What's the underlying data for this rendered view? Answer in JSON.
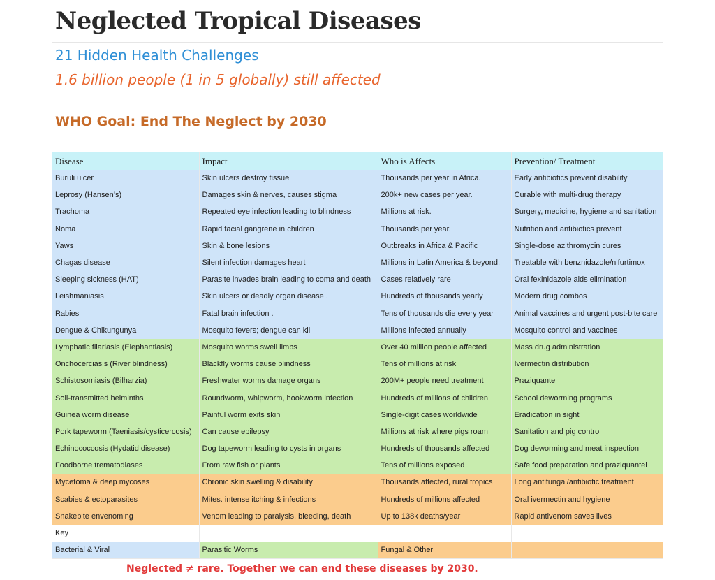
{
  "header": {
    "title": "Neglected Tropical Diseases",
    "subtitle": "21 Hidden Health Challenges",
    "stat": "1.6 billion people (1 in 5 globally) still affected",
    "goal": "WHO Goal: End The Neglect by 2030"
  },
  "table": {
    "columns": [
      "Disease",
      "Impact",
      "Who is Affects",
      "Prevention/ Treatment"
    ],
    "rows": [
      {
        "group": "blue",
        "cells": [
          "Buruli ulcer",
          "Skin ulcers destroy tissue",
          "Thousands per year in Africa.",
          "Early antibiotics prevent disability"
        ]
      },
      {
        "group": "blue",
        "cells": [
          "Leprosy (Hansen’s)",
          "Damages skin & nerves, causes stigma",
          "200k+ new cases per year.",
          "Curable with multi-drug therapy"
        ]
      },
      {
        "group": "blue",
        "cells": [
          "Trachoma",
          "Repeated eye infection leading to blindness",
          "Millions at risk.",
          "Surgery, medicine, hygiene and sanitation"
        ]
      },
      {
        "group": "blue",
        "cells": [
          "Noma",
          "Rapid facial gangrene in children",
          "Thousands per year.",
          "Nutrition and antibiotics prevent"
        ]
      },
      {
        "group": "blue",
        "cells": [
          "Yaws",
          "Skin & bone lesions",
          "Outbreaks in Africa & Pacific",
          "Single-dose azithromycin cures"
        ]
      },
      {
        "group": "blue",
        "cells": [
          "Chagas disease",
          "Silent infection damages heart",
          "Millions in Latin America & beyond.",
          "Treatable with benznidazole/nifurtimox"
        ]
      },
      {
        "group": "blue",
        "cells": [
          "Sleeping sickness (HAT)",
          "Parasite invades brain leading to  coma and death",
          "Cases relatively rare",
          "Oral fexinidazole aids elimination"
        ]
      },
      {
        "group": "blue",
        "cells": [
          "Leishmaniasis",
          "Skin ulcers or deadly organ disease .",
          "Hundreds of thousands yearly",
          "Modern drug combos"
        ]
      },
      {
        "group": "blue",
        "cells": [
          "Rabies",
          "Fatal brain infection .",
          "Tens of thousands die every year",
          "Animal vaccines and urgent post-bite care"
        ]
      },
      {
        "group": "blue",
        "cells": [
          "Dengue & Chikungunya",
          "Mosquito fevers; dengue can kill",
          "Millions infected annually",
          "Mosquito control and vaccines"
        ]
      },
      {
        "group": "green",
        "cells": [
          "Lymphatic filariasis (Elephantiasis)",
          "Mosquito worms swell limbs",
          "Over 40 million people affected",
          "Mass drug administration"
        ]
      },
      {
        "group": "green",
        "cells": [
          "Onchocerciasis (River blindness)",
          "Blackfly worms cause blindness",
          "Tens of millions at risk",
          "Ivermectin distribution"
        ]
      },
      {
        "group": "green",
        "cells": [
          "Schistosomiasis (Bilharzia)",
          "Freshwater worms damage organs",
          "200M+ people need treatment",
          "Praziquantel"
        ]
      },
      {
        "group": "green",
        "cells": [
          "Soil-transmitted helminths",
          "Roundworm, whipworm, hookworm infection",
          "Hundreds of millions of children",
          "School deworming programs"
        ]
      },
      {
        "group": "green",
        "cells": [
          "Guinea worm disease",
          "Painful worm exits skin",
          "Single-digit cases worldwide",
          "Eradication in sight"
        ]
      },
      {
        "group": "green",
        "cells": [
          "Pork tapeworm (Taeniasis/cysticercosis)",
          "Can cause epilepsy",
          "Millions at risk where pigs roam",
          "Sanitation and pig control"
        ]
      },
      {
        "group": "green",
        "cells": [
          "Echinococcosis (Hydatid disease)",
          "Dog tapeworm leading to cysts in organs",
          "Hundreds of thousands affected",
          "Dog deworming and meat inspection"
        ]
      },
      {
        "group": "green",
        "cells": [
          "Foodborne trematodiases",
          "From raw fish or plants",
          "Tens of millions exposed",
          "Safe food preparation and praziquantel"
        ]
      },
      {
        "group": "orange",
        "cells": [
          "Mycetoma & deep mycoses",
          "Chronic skin swelling & disability",
          "Thousands affected, rural tropics",
          "Long antifungal/antibiotic treatment"
        ]
      },
      {
        "group": "orange",
        "cells": [
          "Scabies & ectoparasites",
          "Mites. intense itching & infections",
          "Hundreds of millions affected",
          "Oral ivermectin and hygiene"
        ]
      },
      {
        "group": "orange",
        "cells": [
          "Snakebite envenoming",
          "Venom leading to paralysis, bleeding, death",
          "Up to 138k deaths/year",
          "Rapid antivenom saves lives"
        ]
      }
    ]
  },
  "key": {
    "label": "Key",
    "bacterial_viral": "Bacterial & Viral",
    "parasitic": "Parasitic Worms",
    "fungal": "Fungal & Other"
  },
  "footer": "Neglected ≠ rare. Together we can end these diseases by 2030.",
  "colors": {
    "bacterial_viral": "#cfe4f9",
    "parasitic": "#c8ecae",
    "fungal": "#fbcc8d",
    "header_row": "#c8f2f8"
  }
}
